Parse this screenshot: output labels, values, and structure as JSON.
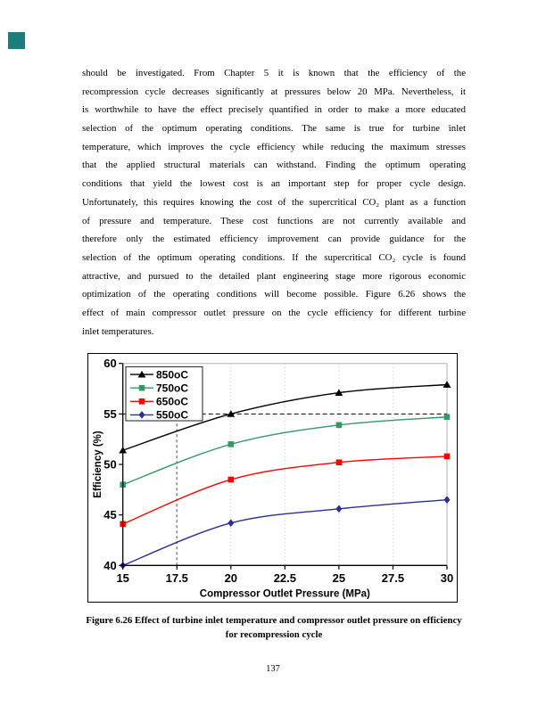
{
  "page": {
    "page_number": "137",
    "corner_marker_color": "#1d7c7c"
  },
  "paragraph": {
    "lines": [
      "should be investigated.  From Chapter 5 it is known that the efficiency of the",
      "recompression cycle decreases significantly at pressures below 20 MPa.  Nevertheless, it",
      "is worthwhile to have the effect precisely quantified in order to make a more educated",
      "selection of the optimum operating conditions.  The same is true for turbine inlet",
      "temperature, which improves the cycle efficiency while reducing the maximum stresses",
      "that the applied structural materials can withstand.  Finding the optimum operating",
      "conditions that yield the lowest cost is an important step for proper cycle design.",
      "Unfortunately, this requires knowing the cost of the supercritical CO₂ plant as a function",
      "of pressure and temperature.  These cost functions are not currently available and",
      "therefore only the estimated efficiency improvement can provide guidance for the",
      "selection of the optimum operating conditions.  If the supercritical CO₂ cycle is found",
      "attractive, and pursued to the detailed plant engineering stage more rigorous economic",
      "optimization of the operating conditions will become possible.  Figure 6.26 shows the",
      "effect of main compressor outlet pressure on the cycle efficiency for different turbine",
      "inlet temperatures."
    ]
  },
  "figure": {
    "caption_line1": "Figure 6.26 Effect of turbine inlet temperature and compressor outlet pressure on efficiency",
    "caption_line2": "for recompression cycle"
  },
  "chart_data": {
    "type": "line",
    "x": [
      15,
      20,
      25,
      30
    ],
    "series": [
      {
        "name": "850oC",
        "color": "#000000",
        "marker": "triangle",
        "values": [
          51.4,
          55.0,
          57.1,
          57.9
        ]
      },
      {
        "name": "750oC",
        "color": "#339966",
        "marker": "square",
        "values": [
          48.0,
          52.0,
          53.9,
          54.7
        ]
      },
      {
        "name": "650oC",
        "color": "#ff0000",
        "marker": "square",
        "values": [
          44.1,
          48.5,
          50.2,
          50.8
        ]
      },
      {
        "name": "550oC",
        "color": "#2d2d96",
        "marker": "diamond",
        "values": [
          40.0,
          44.2,
          45.6,
          46.5
        ]
      }
    ],
    "title": "",
    "xlabel": "Compressor Outlet Pressure (MPa)",
    "ylabel": "Efficiency (%)",
    "xlim": [
      15,
      30
    ],
    "ylim": [
      40,
      60
    ],
    "x_ticks": [
      "15",
      "17.5",
      "20",
      "22.5",
      "25",
      "27.5",
      "30"
    ],
    "y_ticks": [
      "40",
      "45",
      "50",
      "55",
      "60"
    ],
    "grid": "light dotted vertical gridlines at x ticks",
    "reference_lines": {
      "horizontal_dashed_y": 55,
      "vertical_dashed_x": 17.5
    },
    "legend_position": "top-left",
    "smoothed_lines": true
  }
}
